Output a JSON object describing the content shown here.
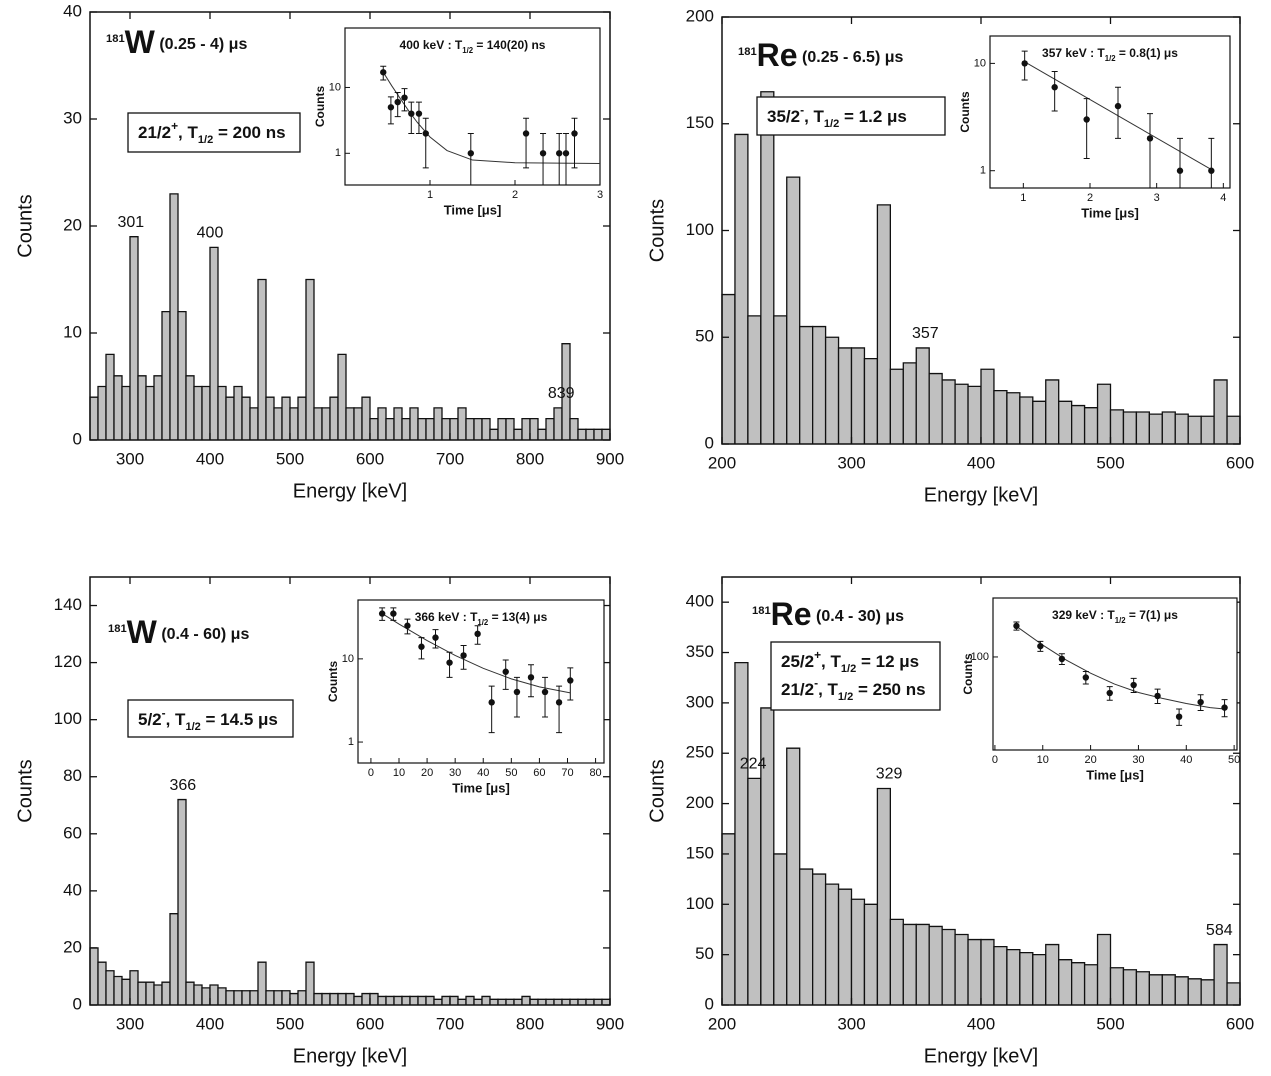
{
  "chart_data": [
    {
      "type": "histogram",
      "xlabel": "Energy [keV]",
      "ylabel": "Counts",
      "label": [
        {
          "sup": "181"
        },
        {
          "big": "W"
        },
        {
          "text": "  (0.25 - 4) μs"
        }
      ],
      "box": [
        [
          {
            "text": "21/2"
          },
          {
            "sup": "+"
          },
          {
            "text": ", T"
          },
          {
            "sub": "1/2"
          },
          {
            "text": " = 200 ns"
          }
        ]
      ],
      "bins": [
        250,
        260,
        270,
        280,
        290,
        300,
        310,
        320,
        330,
        340,
        350,
        360,
        370,
        380,
        390,
        400,
        410,
        420,
        430,
        440,
        450,
        460,
        470,
        480,
        490,
        500,
        510,
        520,
        530,
        540,
        550,
        560,
        570,
        580,
        590,
        600,
        610,
        620,
        630,
        640,
        650,
        660,
        670,
        680,
        690,
        700,
        710,
        720,
        730,
        740,
        750,
        760,
        770,
        780,
        790,
        800,
        810,
        820,
        830,
        840,
        850,
        860,
        870,
        880,
        890,
        900
      ],
      "values": [
        4,
        5,
        8,
        6,
        5,
        19,
        6,
        5,
        6,
        12,
        23,
        12,
        6,
        5,
        5,
        18,
        5,
        4,
        5,
        4,
        3,
        15,
        4,
        3,
        4,
        3,
        4,
        15,
        3,
        3,
        4,
        8,
        3,
        3,
        4,
        2,
        3,
        2,
        3,
        2,
        3,
        2,
        2,
        3,
        2,
        2,
        3,
        2,
        2,
        2,
        1,
        2,
        2,
        1,
        2,
        2,
        1,
        2,
        3,
        9,
        2,
        1,
        1,
        1,
        1
      ],
      "color": "#c0c0c0",
      "peak_labels": [
        301,
        400,
        839
      ],
      "xlim": [
        250,
        900
      ],
      "xticks": [
        300,
        400,
        500,
        600,
        700,
        800,
        900
      ],
      "ylim": [
        0,
        40
      ],
      "yticks": [
        0,
        10,
        20,
        30,
        40
      ],
      "inset": {
        "type": "scatter",
        "xlabel": "Time [μs]",
        "ylabel": "Counts",
        "title": [
          {
            "text": "400 keV : T"
          },
          {
            "sub": "1/2"
          },
          {
            "text": " = 140(20) ns"
          }
        ],
        "x": [
          0.45,
          0.54,
          0.62,
          0.7,
          0.78,
          0.87,
          0.95,
          1.48,
          2.13,
          2.33,
          2.52,
          2.6,
          2.7
        ],
        "values": [
          17,
          5,
          6,
          7,
          4,
          4,
          2,
          1,
          2,
          1,
          1,
          1,
          2
        ],
        "errors": [
          4,
          2.2,
          2.4,
          2.6,
          2,
          2,
          1.4,
          1,
          1.4,
          1,
          1,
          1,
          1.4
        ],
        "fit": {
          "x": [
            0.45,
            0.55,
            0.65,
            0.75,
            0.85,
            1.0,
            1.2,
            1.5,
            2,
            3
          ],
          "values": [
            17,
            10.6,
            6.8,
            4.4,
            2.95,
            1.77,
            1.1,
            0.79,
            0.72,
            0.7
          ]
        },
        "xlim": [
          0,
          3
        ],
        "xticks": [
          1,
          2,
          3
        ],
        "ylim": [
          0.33,
          80
        ],
        "yticks": [
          1,
          10
        ],
        "log_y": true
      }
    },
    {
      "type": "histogram",
      "xlabel": "Energy [keV]",
      "ylabel": "Counts",
      "label": [
        {
          "sup": "181"
        },
        {
          "big": "Re"
        },
        {
          "text": "  (0.25 - 6.5) μs"
        }
      ],
      "box": [
        [
          {
            "text": "35/2"
          },
          {
            "sup": "-"
          },
          {
            "text": ", T"
          },
          {
            "sub": "1/2"
          },
          {
            "text": " = 1.2 μs"
          }
        ]
      ],
      "bins": [
        200,
        210,
        220,
        230,
        240,
        250,
        260,
        270,
        280,
        290,
        300,
        310,
        320,
        330,
        340,
        350,
        360,
        370,
        380,
        390,
        400,
        410,
        420,
        430,
        440,
        450,
        460,
        470,
        480,
        490,
        500,
        510,
        520,
        530,
        540,
        550,
        560,
        570,
        580,
        590,
        600
      ],
      "values": [
        70,
        145,
        60,
        165,
        60,
        125,
        55,
        55,
        50,
        45,
        45,
        40,
        112,
        35,
        38,
        45,
        33,
        30,
        28,
        27,
        35,
        25,
        24,
        22,
        20,
        30,
        20,
        18,
        17,
        28,
        16,
        15,
        15,
        14,
        15,
        14,
        13,
        13,
        30,
        13
      ],
      "color": "#c0c0c0",
      "peak_labels": [
        357
      ],
      "xlim": [
        200,
        600
      ],
      "xticks": [
        200,
        300,
        400,
        500,
        600
      ],
      "ylim": [
        0,
        200
      ],
      "yticks": [
        0,
        50,
        100,
        150,
        200
      ],
      "inset": {
        "type": "scatter",
        "xlabel": "Time [μs]",
        "ylabel": "Counts",
        "title": [
          {
            "text": "357 keV : T"
          },
          {
            "sub": "1/2"
          },
          {
            "text": " = 0.8(1) μs"
          }
        ],
        "x": [
          1.02,
          1.47,
          1.95,
          2.42,
          2.9,
          3.35,
          3.82
        ],
        "values": [
          10,
          6,
          3,
          4,
          2,
          1,
          1
        ],
        "errors": [
          3,
          2.4,
          1.7,
          2,
          1.4,
          1,
          1
        ],
        "fit": {
          "x": [
            1,
            3.85
          ],
          "values": [
            10.5,
            1.0
          ]
        },
        "xlim": [
          0.5,
          4.1
        ],
        "xticks": [
          1,
          2,
          3,
          4
        ],
        "ylim": [
          0.69,
          18
        ],
        "yticks": [
          1,
          10
        ],
        "log_y": true
      }
    },
    {
      "type": "histogram",
      "xlabel": "Energy [keV]",
      "ylabel": "Counts",
      "label": [
        {
          "sup": "181"
        },
        {
          "big": "W"
        },
        {
          "text": "  (0.4 - 60) μs"
        }
      ],
      "box": [
        [
          {
            "text": "5/2"
          },
          {
            "sup": "-"
          },
          {
            "text": ", T"
          },
          {
            "sub": "1/2"
          },
          {
            "text": " = 14.5 μs"
          }
        ]
      ],
      "bins": [
        250,
        260,
        270,
        280,
        290,
        300,
        310,
        320,
        330,
        340,
        350,
        360,
        370,
        380,
        390,
        400,
        410,
        420,
        430,
        440,
        450,
        460,
        470,
        480,
        490,
        500,
        510,
        520,
        530,
        540,
        550,
        560,
        570,
        580,
        590,
        600,
        610,
        620,
        630,
        640,
        650,
        660,
        670,
        680,
        690,
        700,
        710,
        720,
        730,
        740,
        750,
        760,
        770,
        780,
        790,
        800,
        810,
        820,
        830,
        840,
        850,
        860,
        870,
        880,
        890,
        900
      ],
      "values": [
        20,
        15,
        12,
        10,
        9,
        12,
        8,
        8,
        7,
        8,
        32,
        72,
        8,
        7,
        6,
        7,
        6,
        5,
        5,
        5,
        5,
        15,
        5,
        5,
        5,
        4,
        5,
        15,
        4,
        4,
        4,
        4,
        4,
        3,
        4,
        4,
        3,
        3,
        3,
        3,
        3,
        3,
        3,
        2,
        3,
        3,
        2,
        3,
        2,
        3,
        2,
        2,
        2,
        2,
        3,
        2,
        2,
        2,
        2,
        2,
        2,
        2,
        2,
        2,
        2
      ],
      "color": "#c0c0c0",
      "peak_labels": [
        366
      ],
      "xlim": [
        250,
        900
      ],
      "xticks": [
        300,
        400,
        500,
        600,
        700,
        800,
        900
      ],
      "ylim": [
        0,
        150
      ],
      "yticks": [
        0,
        20,
        40,
        60,
        80,
        100,
        120,
        140
      ],
      "inset": {
        "type": "scatter",
        "xlabel": "Time [μs]",
        "ylabel": "Counts",
        "title": [
          {
            "text": "366 keV : T"
          },
          {
            "sub": "1/2"
          },
          {
            "text": " = 13(4) μs"
          }
        ],
        "x": [
          4,
          8,
          13,
          18,
          23,
          28,
          33,
          38,
          43,
          48,
          52,
          57,
          62,
          67,
          71
        ],
        "values": [
          35,
          35,
          25,
          14,
          18,
          9,
          11,
          20,
          3,
          7,
          4,
          6,
          4,
          3,
          5.5
        ],
        "errors": [
          6,
          6,
          5,
          4,
          4.5,
          3,
          3.5,
          5,
          1.7,
          2.7,
          2,
          2.5,
          2,
          1.7,
          2.3
        ],
        "fit": {
          "x": [
            4,
            10,
            20,
            30,
            40,
            50,
            60,
            71
          ],
          "values": [
            35,
            26.2,
            16.6,
            11,
            7.7,
            5.75,
            4.6,
            3.9
          ]
        },
        "xlim": [
          -4.6,
          83
        ],
        "xticks": [
          0,
          10,
          20,
          30,
          40,
          50,
          60,
          70,
          80
        ],
        "ylim": [
          0.56,
          51
        ],
        "yticks": [
          1,
          10
        ],
        "log_y": true
      }
    },
    {
      "type": "histogram",
      "xlabel": "Energy [keV]",
      "ylabel": "Counts",
      "label": [
        {
          "sup": "181"
        },
        {
          "big": "Re"
        },
        {
          "text": " (0.4 - 30) μs"
        }
      ],
      "box": [
        [
          {
            "text": "25/2"
          },
          {
            "sup": "+"
          },
          {
            "text": ", T"
          },
          {
            "sub": "1/2"
          },
          {
            "text": " = 12 μs"
          }
        ],
        [
          {
            "text": "21/2"
          },
          {
            "sup": "-"
          },
          {
            "text": ", T"
          },
          {
            "sub": "1/2"
          },
          {
            "text": " = 250 ns"
          }
        ]
      ],
      "bins": [
        200,
        210,
        220,
        230,
        240,
        250,
        260,
        270,
        280,
        290,
        300,
        310,
        320,
        330,
        340,
        350,
        360,
        370,
        380,
        390,
        400,
        410,
        420,
        430,
        440,
        450,
        460,
        470,
        480,
        490,
        500,
        510,
        520,
        530,
        540,
        550,
        560,
        570,
        580,
        590,
        600
      ],
      "values": [
        170,
        340,
        225,
        295,
        150,
        255,
        135,
        130,
        120,
        115,
        105,
        100,
        215,
        85,
        80,
        80,
        78,
        75,
        70,
        65,
        65,
        58,
        55,
        52,
        50,
        60,
        45,
        42,
        40,
        70,
        37,
        35,
        33,
        30,
        30,
        28,
        26,
        25,
        60,
        22
      ],
      "color": "#c0c0c0",
      "peak_labels": [
        224,
        329,
        584
      ],
      "xlim": [
        200,
        600
      ],
      "xticks": [
        200,
        300,
        400,
        500,
        600
      ],
      "ylim": [
        0,
        425
      ],
      "yticks": [
        0,
        50,
        100,
        150,
        200,
        250,
        300,
        350,
        400
      ],
      "inset": {
        "type": "scatter",
        "xlabel": "Time [μs]",
        "ylabel": "Counts",
        "title": [
          {
            "text": "329 keV : T"
          },
          {
            "sub": "1/2"
          },
          {
            "text": " = 7(1) μs"
          }
        ],
        "x": [
          4.5,
          9.5,
          14,
          19,
          24,
          29,
          34,
          38.5,
          43,
          48
        ],
        "values": [
          161,
          118,
          97,
          73,
          57.5,
          65,
          55,
          40,
          50,
          46
        ],
        "errors": [
          10,
          9,
          8,
          7,
          6,
          7,
          6,
          5,
          6,
          6
        ],
        "fit": {
          "x": [
            4.5,
            10,
            15,
            20,
            25,
            30,
            35,
            40,
            45,
            48
          ],
          "values": [
            160,
            120,
            95,
            78,
            66,
            58,
            53,
            49,
            46,
            45
          ]
        },
        "xlim": [
          -0.4,
          50.6
        ],
        "xticks": [
          0,
          10,
          20,
          30,
          40,
          50
        ],
        "ylim": [
          24,
          247
        ],
        "yticks": [
          100
        ],
        "log_y": true
      }
    }
  ]
}
